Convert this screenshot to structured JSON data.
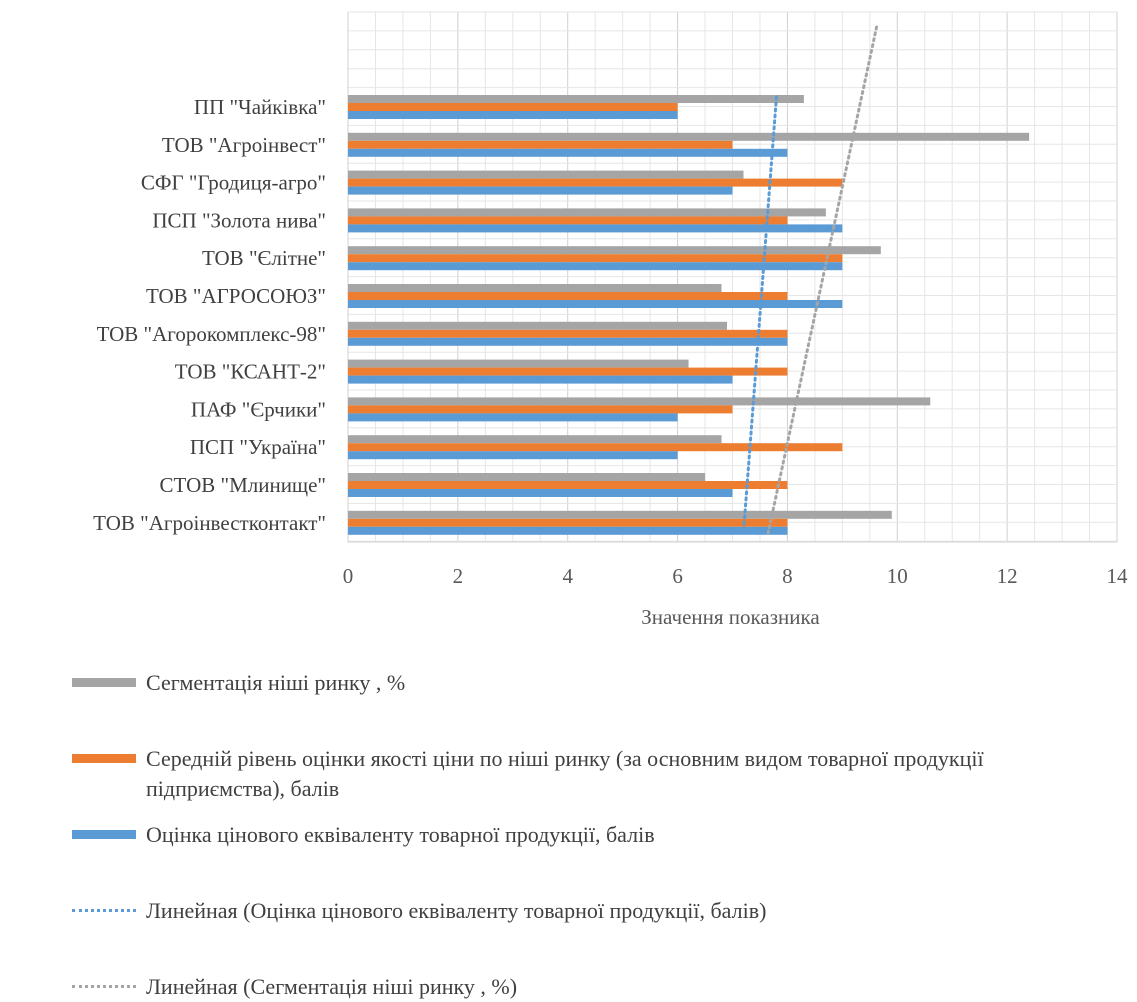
{
  "chart_data": {
    "type": "bar",
    "orientation": "horizontal",
    "categories": [
      "ПП \"Чайківка\"",
      "ТОВ \"Агроінвест\"",
      "СФГ \"Гродиця-агро\"",
      "ПСП \"Золота нива\"",
      "ТОВ \"Єлітне\"",
      "ТОВ \"АГРОСОЮЗ\"",
      "ТОВ \"Агорокомплекс-98\"",
      "ТОВ \"КСАНТ-2\"",
      "ПАФ \"Єрчики\"",
      "ПСП \"Україна\"",
      "СТОВ \"Млинище\"",
      "ТОВ \"Агроінвестконтакт\""
    ],
    "series": [
      {
        "name": "Сегментація ніші ринку , %",
        "color": "#a5a5a5",
        "values": [
          8.3,
          12.4,
          7.2,
          8.7,
          9.7,
          6.8,
          6.9,
          6.2,
          10.6,
          6.8,
          6.5,
          9.9
        ]
      },
      {
        "name": "Середній рівень оцінки якості ціни по ніші ринку (за основним видом товарної продукції підприємства), балів",
        "color": "#ed7d31",
        "values": [
          6,
          7,
          9,
          8,
          9,
          8,
          8,
          8,
          7,
          9,
          8,
          8
        ]
      },
      {
        "name": "Оцінка цінового еквіваленту товарної продукції, балів",
        "color": "#5b9bd5",
        "values": [
          6,
          8,
          7,
          9,
          9,
          9,
          8,
          7,
          6,
          6,
          7,
          8
        ]
      }
    ],
    "trendlines": [
      {
        "name": "Линейная (Оцінка цінового еквіваленту товарної продукції, балів)",
        "color": "#5b9bd5",
        "top_value": 7.8,
        "bottom_value": 7.2
      },
      {
        "name": "Линейная (Сегментація ніші ринку , %)",
        "color": "#a5a5a5",
        "top_value": 9.35,
        "bottom_value": 7.65
      }
    ],
    "xlim": [
      0,
      14
    ],
    "xticks": [
      "0",
      "2",
      "4",
      "6",
      "8",
      "10",
      "12",
      "14"
    ],
    "xlabel": "Значення показника",
    "ylabel": "",
    "title": "",
    "grid": true,
    "legend_position": "bottom"
  }
}
